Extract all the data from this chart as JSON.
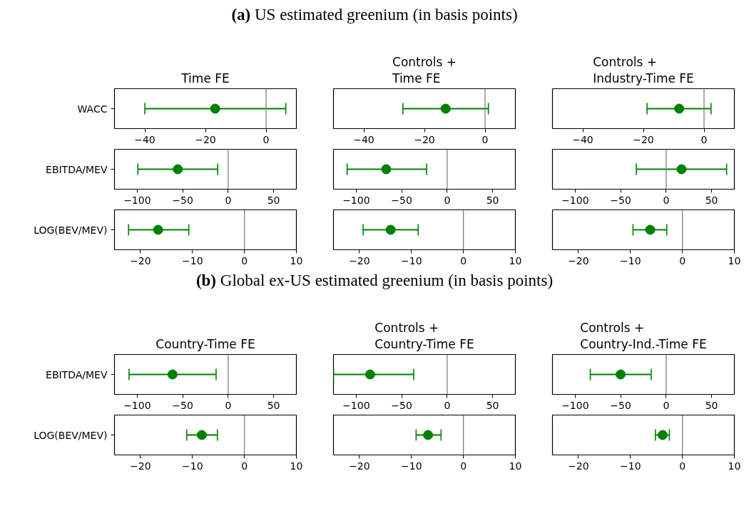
{
  "chart_data": [
    {
      "type": "other",
      "title": "(a) US estimated greenium (in basis points)"
    },
    {
      "type": "scatter",
      "orientation": "horizontal",
      "title": "Time FE",
      "categories": [
        "WACC"
      ],
      "values": [
        -16.8
      ],
      "errors": [
        [
          -40.0,
          6.5
        ]
      ],
      "xlim": [
        -50,
        10
      ],
      "xticks": [
        -40,
        -20,
        0
      ],
      "color": "#008000",
      "marker": "circle",
      "ref_lines": [
        {
          "axis": "x",
          "value": 0,
          "color": "#808080"
        }
      ]
    },
    {
      "type": "scatter",
      "orientation": "horizontal",
      "title": "Controls +\nTime FE",
      "categories": [
        "WACC"
      ],
      "values": [
        -13.0
      ],
      "errors": [
        [
          -27.1,
          1.1
        ]
      ],
      "xlim": [
        -50,
        10
      ],
      "xticks": [
        -40,
        -20,
        0
      ],
      "color": "#008000",
      "marker": "circle",
      "tick_labels": "x",
      "ref_lines": [
        {
          "axis": "x",
          "value": 0,
          "color": "#808080"
        }
      ]
    },
    {
      "type": "scatter",
      "orientation": "horizontal",
      "title": "Controls +\nIndustry-Time FE",
      "categories": [
        "WACC"
      ],
      "values": [
        -8.2
      ],
      "errors": [
        [
          -18.8,
          2.3
        ]
      ],
      "xlim": [
        -50,
        10
      ],
      "xticks": [
        -40,
        -20,
        0
      ],
      "color": "#008000",
      "marker": "circle",
      "tick_labels": "x",
      "ref_lines": [
        {
          "axis": "x",
          "value": 0,
          "color": "#808080"
        }
      ]
    },
    {
      "type": "scatter",
      "orientation": "horizontal",
      "categories": [
        "EBITDA/MEV"
      ],
      "values": [
        -55.4
      ],
      "errors": [
        [
          -99.3,
          -11.5
        ]
      ],
      "xlim": [
        -125,
        75
      ],
      "xticks": [
        -100,
        -50,
        0,
        50
      ],
      "color": "#008000",
      "marker": "circle",
      "ref_lines": [
        {
          "axis": "x",
          "value": 0,
          "color": "#808080"
        }
      ]
    },
    {
      "type": "scatter",
      "orientation": "horizontal",
      "categories": [
        "EBITDA/MEV"
      ],
      "values": [
        -67
      ],
      "errors": [
        [
          -110,
          -22.6
        ]
      ],
      "xlim": [
        -125,
        75
      ],
      "xticks": [
        -100,
        -50,
        0,
        50
      ],
      "color": "#008000",
      "marker": "circle",
      "tick_labels": "x",
      "ref_lines": [
        {
          "axis": "x",
          "value": 0,
          "color": "#808080"
        }
      ]
    },
    {
      "type": "scatter",
      "orientation": "horizontal",
      "categories": [
        "EBITDA/MEV"
      ],
      "values": [
        16.9
      ],
      "errors": [
        [
          -32.8,
          66.5
        ]
      ],
      "xlim": [
        -125,
        75
      ],
      "xticks": [
        -100,
        -50,
        0,
        50
      ],
      "color": "#008000",
      "marker": "circle",
      "tick_labels": "x",
      "ref_lines": [
        {
          "axis": "x",
          "value": 0,
          "color": "#808080"
        }
      ]
    },
    {
      "type": "scatter",
      "orientation": "horizontal",
      "categories": [
        "LOG(BEV/MEV)"
      ],
      "values": [
        -16.6
      ],
      "errors": [
        [
          -22.3,
          -10.7
        ]
      ],
      "xlim": [
        -25,
        10
      ],
      "xticks": [
        -20,
        -10,
        0,
        10
      ],
      "color": "#008000",
      "marker": "circle",
      "ref_lines": [
        {
          "axis": "x",
          "value": 0,
          "color": "#808080"
        }
      ]
    },
    {
      "type": "scatter",
      "orientation": "horizontal",
      "categories": [
        "LOG(BEV/MEV)"
      ],
      "values": [
        -14.0
      ],
      "errors": [
        [
          -19.3,
          -8.7
        ]
      ],
      "xlim": [
        -25,
        10
      ],
      "xticks": [
        -20,
        -10,
        0,
        10
      ],
      "color": "#008000",
      "marker": "circle",
      "tick_labels": "x",
      "ref_lines": [
        {
          "axis": "x",
          "value": 0,
          "color": "#808080"
        }
      ]
    },
    {
      "type": "scatter",
      "orientation": "horizontal",
      "categories": [
        "LOG(BEV/MEV)"
      ],
      "values": [
        -6.2
      ],
      "errors": [
        [
          -9.5,
          -3.0
        ]
      ],
      "xlim": [
        -25,
        10
      ],
      "xticks": [
        -20,
        -10,
        0,
        10
      ],
      "color": "#008000",
      "marker": "circle",
      "tick_labels": "x",
      "ref_lines": [
        {
          "axis": "x",
          "value": 0,
          "color": "#808080"
        }
      ]
    },
    {
      "type": "other",
      "title": "(b) Global ex-US estimated greenium (in basis points)"
    },
    {
      "type": "scatter",
      "orientation": "horizontal",
      "title": "Country-Time FE",
      "categories": [
        "EBITDA/MEV"
      ],
      "values": [
        -61.2
      ],
      "errors": [
        [
          -109,
          -13.3
        ]
      ],
      "xlim": [
        -125,
        75
      ],
      "xticks": [
        -100,
        -50,
        0,
        50
      ],
      "color": "#008000",
      "marker": "circle",
      "ref_lines": [
        {
          "axis": "x",
          "value": 0,
          "color": "#808080"
        }
      ]
    },
    {
      "type": "scatter",
      "orientation": "horizontal",
      "title": "Controls +\nCountry-Time FE",
      "categories": [
        "EBITDA/MEV"
      ],
      "values": [
        -84.7
      ],
      "errors": [
        [
          -125,
          -36.8
        ]
      ],
      "xlim": [
        -125,
        75
      ],
      "xticks": [
        -100,
        -50,
        0,
        50
      ],
      "color": "#008000",
      "marker": "circle",
      "tick_labels": "x",
      "ref_lines": [
        {
          "axis": "x",
          "value": 0,
          "color": "#808080"
        }
      ]
    },
    {
      "type": "scatter",
      "orientation": "horizontal",
      "title": "Controls +\nCountry-Ind.-Time FE",
      "categories": [
        "EBITDA/MEV"
      ],
      "values": [
        -50.1
      ],
      "errors": [
        [
          -83.4,
          -16.4
        ]
      ],
      "xlim": [
        -125,
        75
      ],
      "xticks": [
        -100,
        -50,
        0,
        50
      ],
      "color": "#008000",
      "marker": "circle",
      "tick_labels": "x",
      "ref_lines": [
        {
          "axis": "x",
          "value": 0,
          "color": "#808080"
        }
      ]
    },
    {
      "type": "scatter",
      "orientation": "horizontal",
      "categories": [
        "LOG(BEV/MEV)"
      ],
      "values": [
        -8.2
      ],
      "errors": [
        [
          -11.1,
          -5.2
        ]
      ],
      "xlim": [
        -25,
        10
      ],
      "xticks": [
        -20,
        -10,
        0,
        10
      ],
      "color": "#008000",
      "marker": "circle",
      "ref_lines": [
        {
          "axis": "x",
          "value": 0,
          "color": "#808080"
        }
      ]
    },
    {
      "type": "scatter",
      "orientation": "horizontal",
      "categories": [
        "LOG(BEV/MEV)"
      ],
      "values": [
        -6.8
      ],
      "errors": [
        [
          -9.1,
          -4.3
        ]
      ],
      "xlim": [
        -25,
        10
      ],
      "xticks": [
        -20,
        -10,
        0,
        10
      ],
      "color": "#008000",
      "marker": "circle",
      "tick_labels": "x",
      "ref_lines": [
        {
          "axis": "x",
          "value": 0,
          "color": "#808080"
        }
      ]
    },
    {
      "type": "scatter",
      "orientation": "horizontal",
      "categories": [
        "LOG(BEV/MEV)"
      ],
      "values": [
        -3.8
      ],
      "errors": [
        [
          -5.2,
          -2.5
        ]
      ],
      "xlim": [
        -25,
        10
      ],
      "xticks": [
        -20,
        -10,
        0,
        10
      ],
      "color": "#008000",
      "marker": "circle",
      "tick_labels": "x",
      "ref_lines": [
        {
          "axis": "x",
          "value": 0,
          "color": "#808080"
        }
      ]
    }
  ]
}
